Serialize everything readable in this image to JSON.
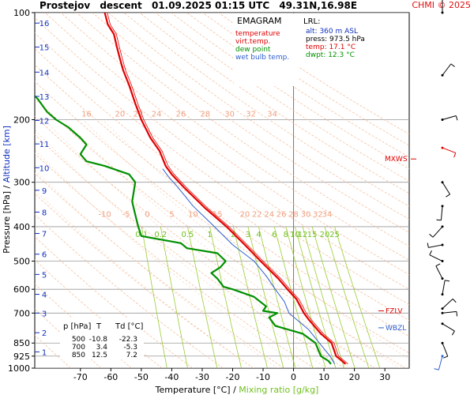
{
  "header": {
    "station": "Prostejov",
    "mode": "descent",
    "datetime": "01.09.2025 01:15 UTC",
    "coords": "49.31N,16.98E",
    "credit": "CHMI © 2025"
  },
  "legend": {
    "title": "EMAGRAM",
    "items": [
      {
        "label": "temperature",
        "color": "#e00000"
      },
      {
        "label": "virt.temp.",
        "color": "#e00000"
      },
      {
        "label": "dew point",
        "color": "#009000"
      },
      {
        "label": "wet bulb temp.",
        "color": "#3060d0"
      }
    ]
  },
  "lrl": {
    "title": "LRL:",
    "alt": "alt: 360 m ASL",
    "press": "press: 973.5 hPa",
    "temp": "temp: 17.1 °C",
    "dwpt": "dwpt: 12.3 °C"
  },
  "levels_table": {
    "headers": [
      "p [hPa]",
      "T",
      "Td [°C]"
    ],
    "rows": [
      [
        "500",
        "-10.8",
        "-22.3"
      ],
      [
        "700",
        "3.4",
        "-5.3"
      ],
      [
        "850",
        "12.5",
        "7.2"
      ]
    ]
  },
  "markers": {
    "mxws": "MXWS",
    "fzlv": "FZLV",
    "wbzl": "WBZL"
  },
  "colors": {
    "temperature": "#e00000",
    "dewpoint": "#009000",
    "wetbulb": "#3060d0",
    "dry_adiabat": "#f4b894",
    "mixing_ratio": "#9acd32",
    "isobar": "#999999",
    "zero_line": "#777777",
    "altitude": "#1030c0",
    "mixing_label": "#70c020",
    "dry_label": "#f0a080"
  },
  "chart_data": {
    "type": "line",
    "title": "EMAGRAM",
    "xlabel": "Temperature [°C]",
    "xlabel_sep": "/",
    "xlabel2": "Mixing ratio [g/kg]",
    "ylabel": "Pressure [hPa]",
    "ylabel_sep": "/",
    "ylabel2": "Altitude [km]",
    "xlim": [
      -85,
      38
    ],
    "x_ticks": [
      -70,
      -60,
      -50,
      -40,
      -30,
      -20,
      -10,
      0,
      10,
      20,
      30
    ],
    "y_scale": "log",
    "ylim": [
      1000,
      100
    ],
    "y_ticks": [
      100,
      200,
      300,
      400,
      500,
      600,
      700,
      850,
      925,
      1000
    ],
    "altitude_km": [
      {
        "km": 1,
        "p": 900
      },
      {
        "km": 2,
        "p": 795
      },
      {
        "km": 3,
        "p": 700
      },
      {
        "km": 4,
        "p": 620
      },
      {
        "km": 5,
        "p": 545
      },
      {
        "km": 6,
        "p": 478
      },
      {
        "km": 7,
        "p": 418
      },
      {
        "km": 8,
        "p": 364
      },
      {
        "km": 9,
        "p": 316
      },
      {
        "km": 10,
        "p": 273
      },
      {
        "km": 11,
        "p": 234
      },
      {
        "km": 12,
        "p": 201
      },
      {
        "km": 13,
        "p": 172
      },
      {
        "km": 14,
        "p": 147
      },
      {
        "km": 15,
        "p": 125
      },
      {
        "km": 16,
        "p": 107
      }
    ],
    "dry_adiabat_labels_upper": [
      "16",
      "20",
      "22",
      "24",
      "26",
      "28",
      "30",
      "32",
      "34"
    ],
    "dry_adiabat_labels_lower": [
      "-10",
      "-5",
      "0",
      "5",
      "10",
      "15",
      "20",
      "22",
      "24",
      "26",
      "28",
      "30",
      "32",
      "34"
    ],
    "mixing_ratio_labels": [
      "0.1",
      "0.2",
      "0.5",
      "1",
      "2",
      "3",
      "4",
      "6",
      "8",
      "10",
      "12",
      "15",
      "20",
      "25"
    ],
    "mixing_ratio_values": [
      0.1,
      0.2,
      0.5,
      1,
      2,
      3,
      4,
      6,
      8,
      10,
      12,
      15,
      20,
      25
    ],
    "series": [
      {
        "name": "temperature",
        "points": [
          [
            17.1,
            973.5
          ],
          [
            16,
            955
          ],
          [
            14,
            925
          ],
          [
            12.5,
            850
          ],
          [
            9,
            800
          ],
          [
            5,
            730
          ],
          [
            3.4,
            700
          ],
          [
            1,
            640
          ],
          [
            -2,
            600
          ],
          [
            -5,
            560
          ],
          [
            -10.8,
            500
          ],
          [
            -16,
            450
          ],
          [
            -22,
            400
          ],
          [
            -29,
            355
          ],
          [
            -36,
            310
          ],
          [
            -40,
            285
          ],
          [
            -42,
            270
          ],
          [
            -44,
            245
          ],
          [
            -47,
            225
          ],
          [
            -50,
            200
          ],
          [
            -52,
            180
          ],
          [
            -54,
            160
          ],
          [
            -56,
            145
          ],
          [
            -57,
            135
          ],
          [
            -58,
            125
          ],
          [
            -59,
            115
          ],
          [
            -61,
            108
          ],
          [
            -62,
            100
          ]
        ]
      },
      {
        "name": "dew point",
        "points": [
          [
            12.3,
            973.5
          ],
          [
            11.5,
            955
          ],
          [
            9,
            925
          ],
          [
            7.2,
            850
          ],
          [
            3,
            800
          ],
          [
            -6,
            760
          ],
          [
            -8,
            720
          ],
          [
            -5.3,
            700
          ],
          [
            -10,
            690
          ],
          [
            -9,
            670
          ],
          [
            -11,
            650
          ],
          [
            -13,
            630
          ],
          [
            -20,
            600
          ],
          [
            -23,
            590
          ],
          [
            -25,
            560
          ],
          [
            -27,
            540
          ],
          [
            -24,
            520
          ],
          [
            -22.3,
            500
          ],
          [
            -25,
            475
          ],
          [
            -35,
            460
          ],
          [
            -37,
            445
          ],
          [
            -50,
            425
          ],
          [
            -51,
            400
          ],
          [
            -52,
            370
          ],
          [
            -53,
            340
          ],
          [
            -52,
            300
          ],
          [
            -54,
            285
          ],
          [
            -62,
            270
          ],
          [
            -68,
            262
          ],
          [
            -70,
            250
          ],
          [
            -68,
            235
          ],
          [
            -70,
            225
          ],
          [
            -74,
            210
          ],
          [
            -78,
            200
          ],
          [
            -81,
            190
          ],
          [
            -84,
            175
          ],
          [
            -86,
            168
          ]
        ]
      },
      {
        "name": "wet bulb temp.",
        "points": [
          [
            13.5,
            973.5
          ],
          [
            12,
            925
          ],
          [
            8.5,
            850
          ],
          [
            5,
            780
          ],
          [
            -1.5,
            700
          ],
          [
            -3,
            650
          ],
          [
            -6,
            600
          ],
          [
            -9,
            550
          ],
          [
            -13,
            500
          ],
          [
            -20,
            450
          ],
          [
            -26,
            400
          ],
          [
            -33,
            350
          ],
          [
            -38,
            310
          ],
          [
            -41,
            290
          ],
          [
            -43,
            275
          ]
        ]
      }
    ],
    "wind_barb_pressures": [
      100,
      150,
      200,
      240,
      300,
      350,
      400,
      450,
      500,
      560,
      620,
      680,
      700,
      750,
      850,
      925
    ]
  }
}
